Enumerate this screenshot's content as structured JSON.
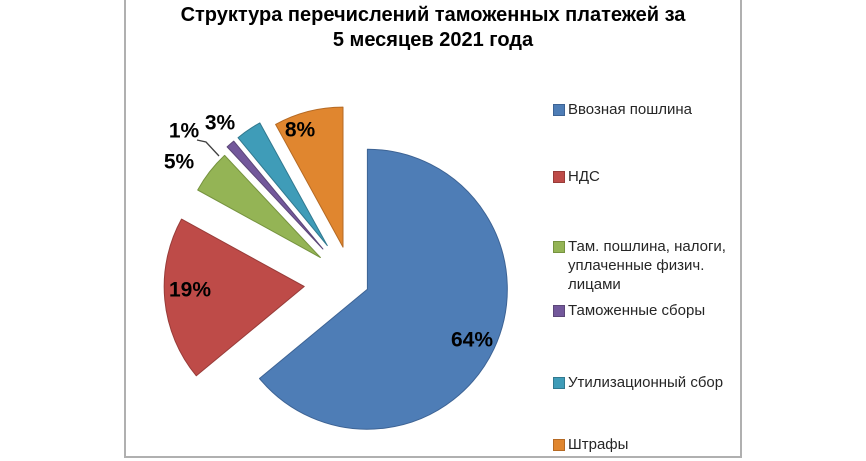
{
  "chart_data": {
    "type": "pie",
    "style": "exploded",
    "title": "Структура перечислений таможенных платежей за 5 месяцев 2021 года",
    "title_lines": [
      "Структура перечислений таможенных платежей за",
      "5 месяцев 2021 года"
    ],
    "total": 100,
    "start_angle_deg": 0,
    "direction": "clockwise",
    "legend_position": "right",
    "labels_show": "percent",
    "slices": [
      {
        "label": "Ввозная пошлина",
        "value": 64,
        "pct_label": "64%",
        "color": "#4E7DB6",
        "border_color": "#3D6394"
      },
      {
        "label": "НДС",
        "value": 19,
        "pct_label": "19%",
        "color": "#BE4B48",
        "border_color": "#983C39"
      },
      {
        "label": "Там. пошлина, налоги, уплаченные физич. лицами",
        "value": 5,
        "pct_label": "5%",
        "color": "#94B455",
        "border_color": "#76933F"
      },
      {
        "label": "Таможенные сборы",
        "value": 1,
        "pct_label": "1%",
        "color": "#73589B",
        "border_color": "#5C4778"
      },
      {
        "label": "Утилизационный сбор",
        "value": 3,
        "pct_label": "3%",
        "color": "#3F9CB8",
        "border_color": "#31798F"
      },
      {
        "label": "Штрафы",
        "value": 8,
        "pct_label": "8%",
        "color": "#E0862F",
        "border_color": "#B56A24"
      }
    ]
  },
  "colors": {
    "chart_border": "#b0b0b0",
    "title_text": "#000000",
    "legend_text": "#262626",
    "label_text": "#000000",
    "leader_line": "#404040"
  }
}
